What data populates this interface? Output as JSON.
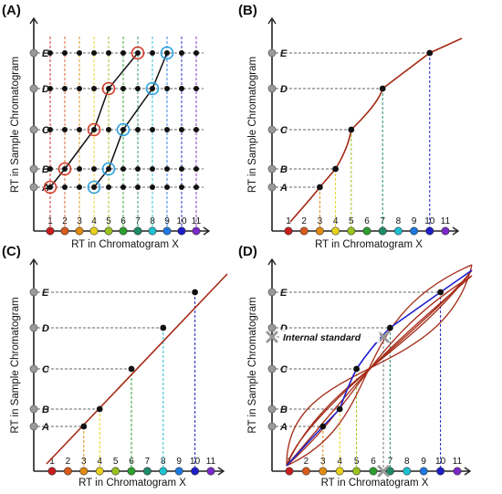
{
  "colors": {
    "axis": "#222222",
    "curve": "#a52a16",
    "path_black": "#111111",
    "path_blue": "#1f1fcc",
    "dot": "#111111",
    "marker_gray": "#9a9a9a",
    "ring_red": "#d23a2a",
    "ring_blue": "#2aa0e0",
    "x_marker_colors": [
      "#c81e1e",
      "#d85a1c",
      "#e08a10",
      "#e6d21a",
      "#98c21e",
      "#2e9e2e",
      "#1e8a6a",
      "#1ec0d0",
      "#1e78e0",
      "#1e1ec8",
      "#7a2ac8"
    ]
  },
  "panels": [
    {
      "label": "(A)",
      "xlabel": "RT in Chromatogram X",
      "ylabel": "RT in Sample Chromatogram",
      "x_ticks": [
        "1",
        "2",
        "3",
        "4",
        "5",
        "6",
        "7",
        "8",
        "9",
        "10",
        "11"
      ],
      "y_ticks": [
        "A",
        "B",
        "C",
        "D",
        "E"
      ],
      "grid_rows": 5,
      "grid_cols": 11,
      "path_red_rings": [
        [
          1,
          "A"
        ],
        [
          2,
          "B"
        ],
        [
          4,
          "C"
        ],
        [
          5,
          "D"
        ],
        [
          7,
          "E"
        ]
      ],
      "path_blue_rings": [
        [
          4,
          "A"
        ],
        [
          5,
          "B"
        ],
        [
          6,
          "C"
        ],
        [
          8,
          "D"
        ],
        [
          9,
          "E"
        ]
      ]
    },
    {
      "label": "(B)",
      "xlabel": "RT in Chromatogram X",
      "ylabel": "RT in Sample Chromatogram",
      "x_ticks": [
        "1",
        "2",
        "3",
        "4",
        "5",
        "6",
        "7",
        "8",
        "9",
        "10",
        "11"
      ],
      "y_ticks": [
        "A",
        "B",
        "C",
        "D",
        "E"
      ],
      "points": [
        [
          3,
          "A"
        ],
        [
          4,
          "B"
        ],
        [
          5,
          "C"
        ],
        [
          7,
          "D"
        ],
        [
          10,
          "E"
        ]
      ]
    },
    {
      "label": "(C)",
      "xlabel": "RT in Chromatogram X",
      "ylabel": "RT in Sample Chromatogram",
      "x_ticks": [
        "1",
        "2",
        "3",
        "4",
        "5",
        "6",
        "7",
        "8",
        "9",
        "10",
        "11"
      ],
      "y_ticks": [
        "A",
        "B",
        "C",
        "D",
        "E"
      ],
      "points": [
        [
          3,
          "A"
        ],
        [
          4,
          "B"
        ],
        [
          6,
          "C"
        ],
        [
          8,
          "D"
        ],
        [
          10,
          "E"
        ]
      ]
    },
    {
      "label": "(D)",
      "xlabel": "RT in Chromatogram X",
      "ylabel": "RT in Sample Chromatogram",
      "x_ticks": [
        "1",
        "2",
        "3",
        "4",
        "5",
        "6",
        "7",
        "8",
        "9",
        "10",
        "11"
      ],
      "y_ticks": [
        "A",
        "B",
        "C",
        "D",
        "E"
      ],
      "points": [
        [
          3,
          "A"
        ],
        [
          4,
          "B"
        ],
        [
          5,
          "C"
        ],
        [
          7,
          "D"
        ],
        [
          10,
          "E"
        ]
      ],
      "annotation": "Internal standard"
    }
  ]
}
